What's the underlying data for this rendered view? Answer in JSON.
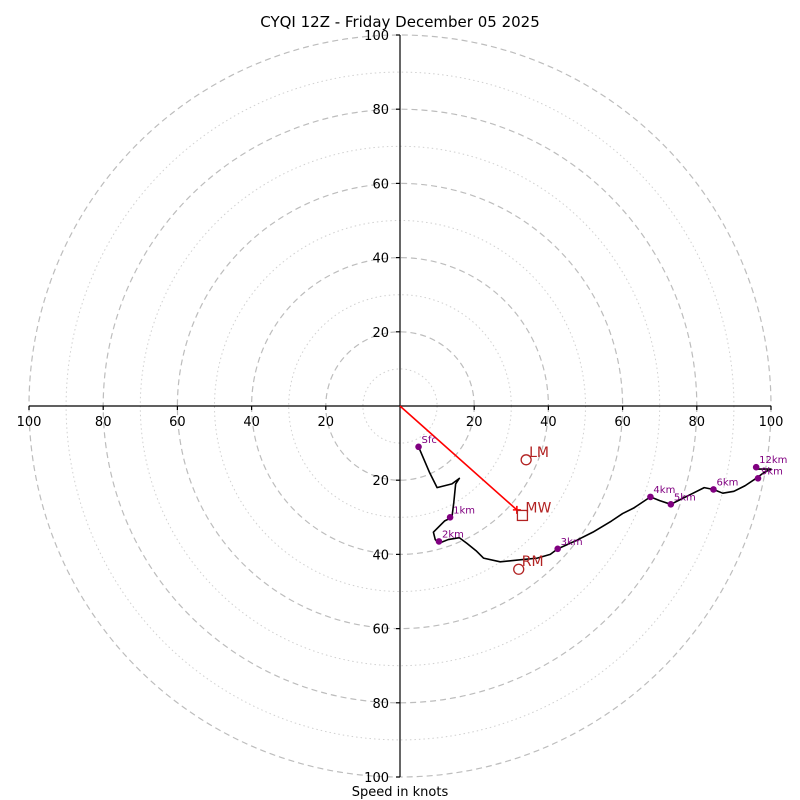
{
  "chart_data": {
    "type": "hodograph",
    "title": "CYQI 12Z - Friday December 05 2025",
    "xlabel": "Speed in knots",
    "xlim": [
      -100,
      100
    ],
    "ylim": [
      -100,
      100
    ],
    "ring_major": [
      20,
      40,
      60,
      80,
      100
    ],
    "ring_minor": [
      10,
      30,
      50,
      70,
      90
    ],
    "x_ticks": [
      "100",
      "80",
      "60",
      "40",
      "20",
      "20",
      "40",
      "60",
      "80",
      "100"
    ],
    "x_tick_values": [
      -100,
      -80,
      -60,
      -40,
      -20,
      20,
      40,
      60,
      80,
      100
    ],
    "y_ticks": [
      "100",
      "80",
      "60",
      "40",
      "20",
      "20",
      "40",
      "60",
      "80",
      "100"
    ],
    "y_tick_values": [
      100,
      80,
      60,
      40,
      20,
      -20,
      -40,
      -60,
      -80,
      -100
    ],
    "trace": [
      [
        5,
        -11
      ],
      [
        8,
        -18
      ],
      [
        10,
        -22
      ],
      [
        14,
        -21
      ],
      [
        16,
        -19.5
      ],
      [
        15,
        -21
      ],
      [
        14.5,
        -26
      ],
      [
        14,
        -30
      ],
      [
        12,
        -31
      ],
      [
        9,
        -34
      ],
      [
        9.5,
        -36
      ],
      [
        10.5,
        -37
      ],
      [
        13,
        -36
      ],
      [
        16,
        -35.5
      ],
      [
        18,
        -37
      ],
      [
        20.5,
        -39
      ],
      [
        22.5,
        -41
      ],
      [
        27,
        -42
      ],
      [
        32,
        -41.5
      ],
      [
        37,
        -41
      ],
      [
        40.5,
        -40
      ],
      [
        42.5,
        -38.5
      ],
      [
        47,
        -36.5
      ],
      [
        52,
        -34
      ],
      [
        57,
        -31
      ],
      [
        60,
        -29
      ],
      [
        63,
        -27.5
      ],
      [
        67.5,
        -24.5
      ],
      [
        70,
        -25.5
      ],
      [
        73,
        -26.5
      ],
      [
        76,
        -25
      ],
      [
        79,
        -23.5
      ],
      [
        82,
        -22
      ],
      [
        84.5,
        -22.5
      ],
      [
        87,
        -23.5
      ],
      [
        90,
        -23
      ],
      [
        93,
        -21.5
      ],
      [
        96,
        -19.5
      ],
      [
        98,
        -18
      ],
      [
        100,
        -17
      ],
      [
        98,
        -17
      ],
      [
        96,
        -17
      ]
    ],
    "points": [
      {
        "label": "Sfc",
        "u": 5,
        "v": -11
      },
      {
        "label": "1km",
        "u": 13.5,
        "v": -30
      },
      {
        "label": "2km",
        "u": 10.5,
        "v": -36.5
      },
      {
        "label": "3km",
        "u": 42.5,
        "v": -38.5
      },
      {
        "label": "4km",
        "u": 67.5,
        "v": -24.5
      },
      {
        "label": "5km",
        "u": 73,
        "v": -26.5
      },
      {
        "label": "6km",
        "u": 84.5,
        "v": -22.5
      },
      {
        "label": "9km",
        "u": 96.5,
        "v": -19.5
      },
      {
        "label": "12km",
        "u": 96,
        "v": -16.5
      }
    ],
    "storm_motion": [
      {
        "label": "LM",
        "u": 34,
        "v": -14.5,
        "marker": "circle"
      },
      {
        "label": "MW",
        "u": 33,
        "v": -29.5,
        "marker": "square"
      },
      {
        "label": "RM",
        "u": 32,
        "v": -44,
        "marker": "circle"
      }
    ],
    "shear_vector": {
      "from": [
        0,
        0
      ],
      "to": [
        31.5,
        -28
      ]
    }
  }
}
